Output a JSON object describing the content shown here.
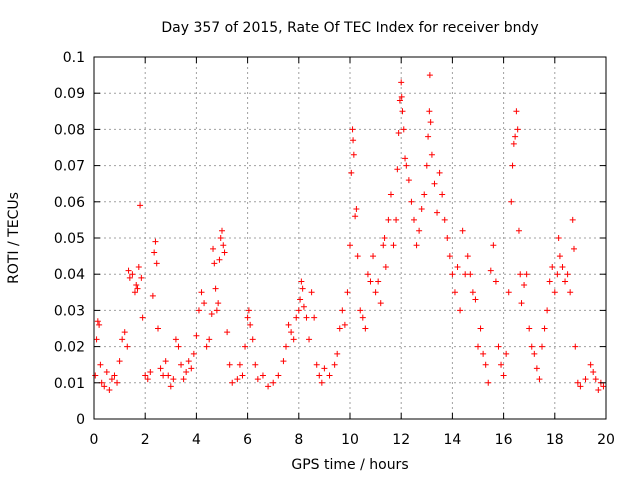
{
  "chart_data": {
    "type": "scatter",
    "title": "Day 357 of 2015, Rate Of TEC Index for receiver bndy",
    "xlabel": "GPS time / hours",
    "ylabel": "ROTI / TECUs",
    "xlim": [
      0,
      20
    ],
    "ylim": [
      0,
      0.1
    ],
    "x_ticks": [
      0,
      2,
      4,
      6,
      8,
      10,
      12,
      14,
      16,
      18,
      20
    ],
    "y_ticks": [
      0,
      0.01,
      0.02,
      0.03,
      0.04,
      0.05,
      0.06,
      0.07,
      0.08,
      0.09,
      0.1
    ],
    "x_tick_labels": [
      "0",
      "2",
      "4",
      "6",
      "8",
      "10",
      "12",
      "14",
      "16",
      "18",
      "20"
    ],
    "y_tick_labels": [
      "0",
      "0.01",
      "0.02",
      "0.03",
      "0.04",
      "0.05",
      "0.06",
      "0.07",
      "0.08",
      "0.09",
      "0.1"
    ],
    "grid": true,
    "marker": "+",
    "series": [
      {
        "name": "ROTI",
        "color": "#ff0000",
        "points": [
          [
            0.05,
            0.012
          ],
          [
            0.1,
            0.022
          ],
          [
            0.15,
            0.027
          ],
          [
            0.2,
            0.026
          ],
          [
            0.25,
            0.015
          ],
          [
            0.3,
            0.01
          ],
          [
            0.4,
            0.009
          ],
          [
            0.5,
            0.013
          ],
          [
            0.6,
            0.008
          ],
          [
            0.7,
            0.011
          ],
          [
            0.8,
            0.012
          ],
          [
            0.9,
            0.01
          ],
          [
            1.0,
            0.016
          ],
          [
            1.1,
            0.022
          ],
          [
            1.2,
            0.024
          ],
          [
            1.3,
            0.02
          ],
          [
            1.35,
            0.041
          ],
          [
            1.4,
            0.039
          ],
          [
            1.5,
            0.04
          ],
          [
            1.6,
            0.035
          ],
          [
            1.65,
            0.037
          ],
          [
            1.7,
            0.036
          ],
          [
            1.75,
            0.042
          ],
          [
            1.8,
            0.059
          ],
          [
            1.85,
            0.039
          ],
          [
            1.9,
            0.028
          ],
          [
            2.0,
            0.012
          ],
          [
            2.1,
            0.011
          ],
          [
            2.2,
            0.013
          ],
          [
            2.3,
            0.034
          ],
          [
            2.35,
            0.046
          ],
          [
            2.4,
            0.049
          ],
          [
            2.45,
            0.043
          ],
          [
            2.5,
            0.025
          ],
          [
            2.6,
            0.014
          ],
          [
            2.7,
            0.012
          ],
          [
            2.8,
            0.016
          ],
          [
            2.9,
            0.012
          ],
          [
            3.0,
            0.009
          ],
          [
            3.1,
            0.011
          ],
          [
            3.2,
            0.022
          ],
          [
            3.3,
            0.02
          ],
          [
            3.4,
            0.015
          ],
          [
            3.5,
            0.011
          ],
          [
            3.6,
            0.013
          ],
          [
            3.7,
            0.016
          ],
          [
            3.8,
            0.014
          ],
          [
            3.9,
            0.018
          ],
          [
            4.0,
            0.023
          ],
          [
            4.1,
            0.03
          ],
          [
            4.2,
            0.035
          ],
          [
            4.3,
            0.032
          ],
          [
            4.4,
            0.02
          ],
          [
            4.5,
            0.022
          ],
          [
            4.6,
            0.029
          ],
          [
            4.65,
            0.047
          ],
          [
            4.7,
            0.043
          ],
          [
            4.75,
            0.036
          ],
          [
            4.8,
            0.03
          ],
          [
            4.85,
            0.032
          ],
          [
            4.9,
            0.044
          ],
          [
            4.95,
            0.05
          ],
          [
            5.0,
            0.052
          ],
          [
            5.05,
            0.048
          ],
          [
            5.1,
            0.046
          ],
          [
            5.2,
            0.024
          ],
          [
            5.3,
            0.015
          ],
          [
            5.4,
            0.01
          ],
          [
            5.6,
            0.011
          ],
          [
            5.7,
            0.015
          ],
          [
            5.8,
            0.012
          ],
          [
            5.9,
            0.02
          ],
          [
            6.0,
            0.028
          ],
          [
            6.05,
            0.03
          ],
          [
            6.1,
            0.026
          ],
          [
            6.2,
            0.022
          ],
          [
            6.3,
            0.015
          ],
          [
            6.4,
            0.011
          ],
          [
            6.6,
            0.012
          ],
          [
            6.8,
            0.009
          ],
          [
            7.0,
            0.01
          ],
          [
            7.2,
            0.012
          ],
          [
            7.4,
            0.016
          ],
          [
            7.5,
            0.02
          ],
          [
            7.6,
            0.026
          ],
          [
            7.7,
            0.024
          ],
          [
            7.8,
            0.022
          ],
          [
            7.9,
            0.028
          ],
          [
            8.0,
            0.03
          ],
          [
            8.05,
            0.033
          ],
          [
            8.1,
            0.038
          ],
          [
            8.15,
            0.036
          ],
          [
            8.2,
            0.031
          ],
          [
            8.3,
            0.028
          ],
          [
            8.4,
            0.022
          ],
          [
            8.5,
            0.035
          ],
          [
            8.6,
            0.028
          ],
          [
            8.7,
            0.015
          ],
          [
            8.8,
            0.012
          ],
          [
            8.9,
            0.01
          ],
          [
            9.0,
            0.014
          ],
          [
            9.2,
            0.012
          ],
          [
            9.4,
            0.015
          ],
          [
            9.5,
            0.018
          ],
          [
            9.6,
            0.025
          ],
          [
            9.7,
            0.03
          ],
          [
            9.8,
            0.026
          ],
          [
            9.9,
            0.035
          ],
          [
            10.0,
            0.048
          ],
          [
            10.05,
            0.068
          ],
          [
            10.1,
            0.08
          ],
          [
            10.12,
            0.077
          ],
          [
            10.15,
            0.073
          ],
          [
            10.2,
            0.056
          ],
          [
            10.25,
            0.058
          ],
          [
            10.3,
            0.045
          ],
          [
            10.4,
            0.03
          ],
          [
            10.5,
            0.028
          ],
          [
            10.6,
            0.025
          ],
          [
            10.7,
            0.04
          ],
          [
            10.8,
            0.038
          ],
          [
            10.9,
            0.045
          ],
          [
            11.0,
            0.035
          ],
          [
            11.1,
            0.038
          ],
          [
            11.2,
            0.032
          ],
          [
            11.3,
            0.048
          ],
          [
            11.35,
            0.05
          ],
          [
            11.4,
            0.042
          ],
          [
            11.5,
            0.055
          ],
          [
            11.6,
            0.062
          ],
          [
            11.7,
            0.048
          ],
          [
            11.8,
            0.055
          ],
          [
            11.85,
            0.069
          ],
          [
            11.9,
            0.079
          ],
          [
            11.95,
            0.088
          ],
          [
            12.0,
            0.093
          ],
          [
            12.02,
            0.089
          ],
          [
            12.05,
            0.085
          ],
          [
            12.1,
            0.08
          ],
          [
            12.15,
            0.072
          ],
          [
            12.2,
            0.07
          ],
          [
            12.3,
            0.066
          ],
          [
            12.4,
            0.06
          ],
          [
            12.5,
            0.055
          ],
          [
            12.6,
            0.048
          ],
          [
            12.7,
            0.052
          ],
          [
            12.8,
            0.058
          ],
          [
            12.9,
            0.062
          ],
          [
            13.0,
            0.07
          ],
          [
            13.05,
            0.078
          ],
          [
            13.1,
            0.085
          ],
          [
            13.12,
            0.095
          ],
          [
            13.15,
            0.082
          ],
          [
            13.2,
            0.073
          ],
          [
            13.3,
            0.065
          ],
          [
            13.4,
            0.057
          ],
          [
            13.5,
            0.068
          ],
          [
            13.6,
            0.062
          ],
          [
            13.7,
            0.055
          ],
          [
            13.8,
            0.05
          ],
          [
            13.9,
            0.045
          ],
          [
            14.0,
            0.04
          ],
          [
            14.1,
            0.035
          ],
          [
            14.2,
            0.042
          ],
          [
            14.3,
            0.03
          ],
          [
            14.4,
            0.052
          ],
          [
            14.5,
            0.04
          ],
          [
            14.6,
            0.045
          ],
          [
            14.7,
            0.04
          ],
          [
            14.8,
            0.035
          ],
          [
            14.9,
            0.033
          ],
          [
            15.0,
            0.02
          ],
          [
            15.1,
            0.025
          ],
          [
            15.2,
            0.018
          ],
          [
            15.3,
            0.015
          ],
          [
            15.4,
            0.01
          ],
          [
            15.5,
            0.041
          ],
          [
            15.6,
            0.048
          ],
          [
            15.7,
            0.038
          ],
          [
            15.8,
            0.02
          ],
          [
            15.9,
            0.015
          ],
          [
            16.0,
            0.012
          ],
          [
            16.1,
            0.018
          ],
          [
            16.2,
            0.035
          ],
          [
            16.3,
            0.06
          ],
          [
            16.35,
            0.07
          ],
          [
            16.4,
            0.076
          ],
          [
            16.45,
            0.078
          ],
          [
            16.5,
            0.085
          ],
          [
            16.55,
            0.08
          ],
          [
            16.6,
            0.052
          ],
          [
            16.65,
            0.04
          ],
          [
            16.7,
            0.032
          ],
          [
            16.8,
            0.037
          ],
          [
            16.9,
            0.04
          ],
          [
            17.0,
            0.025
          ],
          [
            17.1,
            0.02
          ],
          [
            17.2,
            0.018
          ],
          [
            17.3,
            0.014
          ],
          [
            17.4,
            0.011
          ],
          [
            17.5,
            0.02
          ],
          [
            17.6,
            0.025
          ],
          [
            17.7,
            0.03
          ],
          [
            17.8,
            0.038
          ],
          [
            17.9,
            0.042
          ],
          [
            18.0,
            0.035
          ],
          [
            18.1,
            0.04
          ],
          [
            18.15,
            0.05
          ],
          [
            18.2,
            0.045
          ],
          [
            18.3,
            0.042
          ],
          [
            18.4,
            0.038
          ],
          [
            18.5,
            0.04
          ],
          [
            18.6,
            0.035
          ],
          [
            18.7,
            0.055
          ],
          [
            18.75,
            0.047
          ],
          [
            18.8,
            0.02
          ],
          [
            18.9,
            0.01
          ],
          [
            19.0,
            0.009
          ],
          [
            19.2,
            0.011
          ],
          [
            19.4,
            0.015
          ],
          [
            19.5,
            0.013
          ],
          [
            19.6,
            0.011
          ],
          [
            19.7,
            0.008
          ],
          [
            19.8,
            0.01
          ],
          [
            19.9,
            0.009
          ]
        ]
      }
    ]
  }
}
